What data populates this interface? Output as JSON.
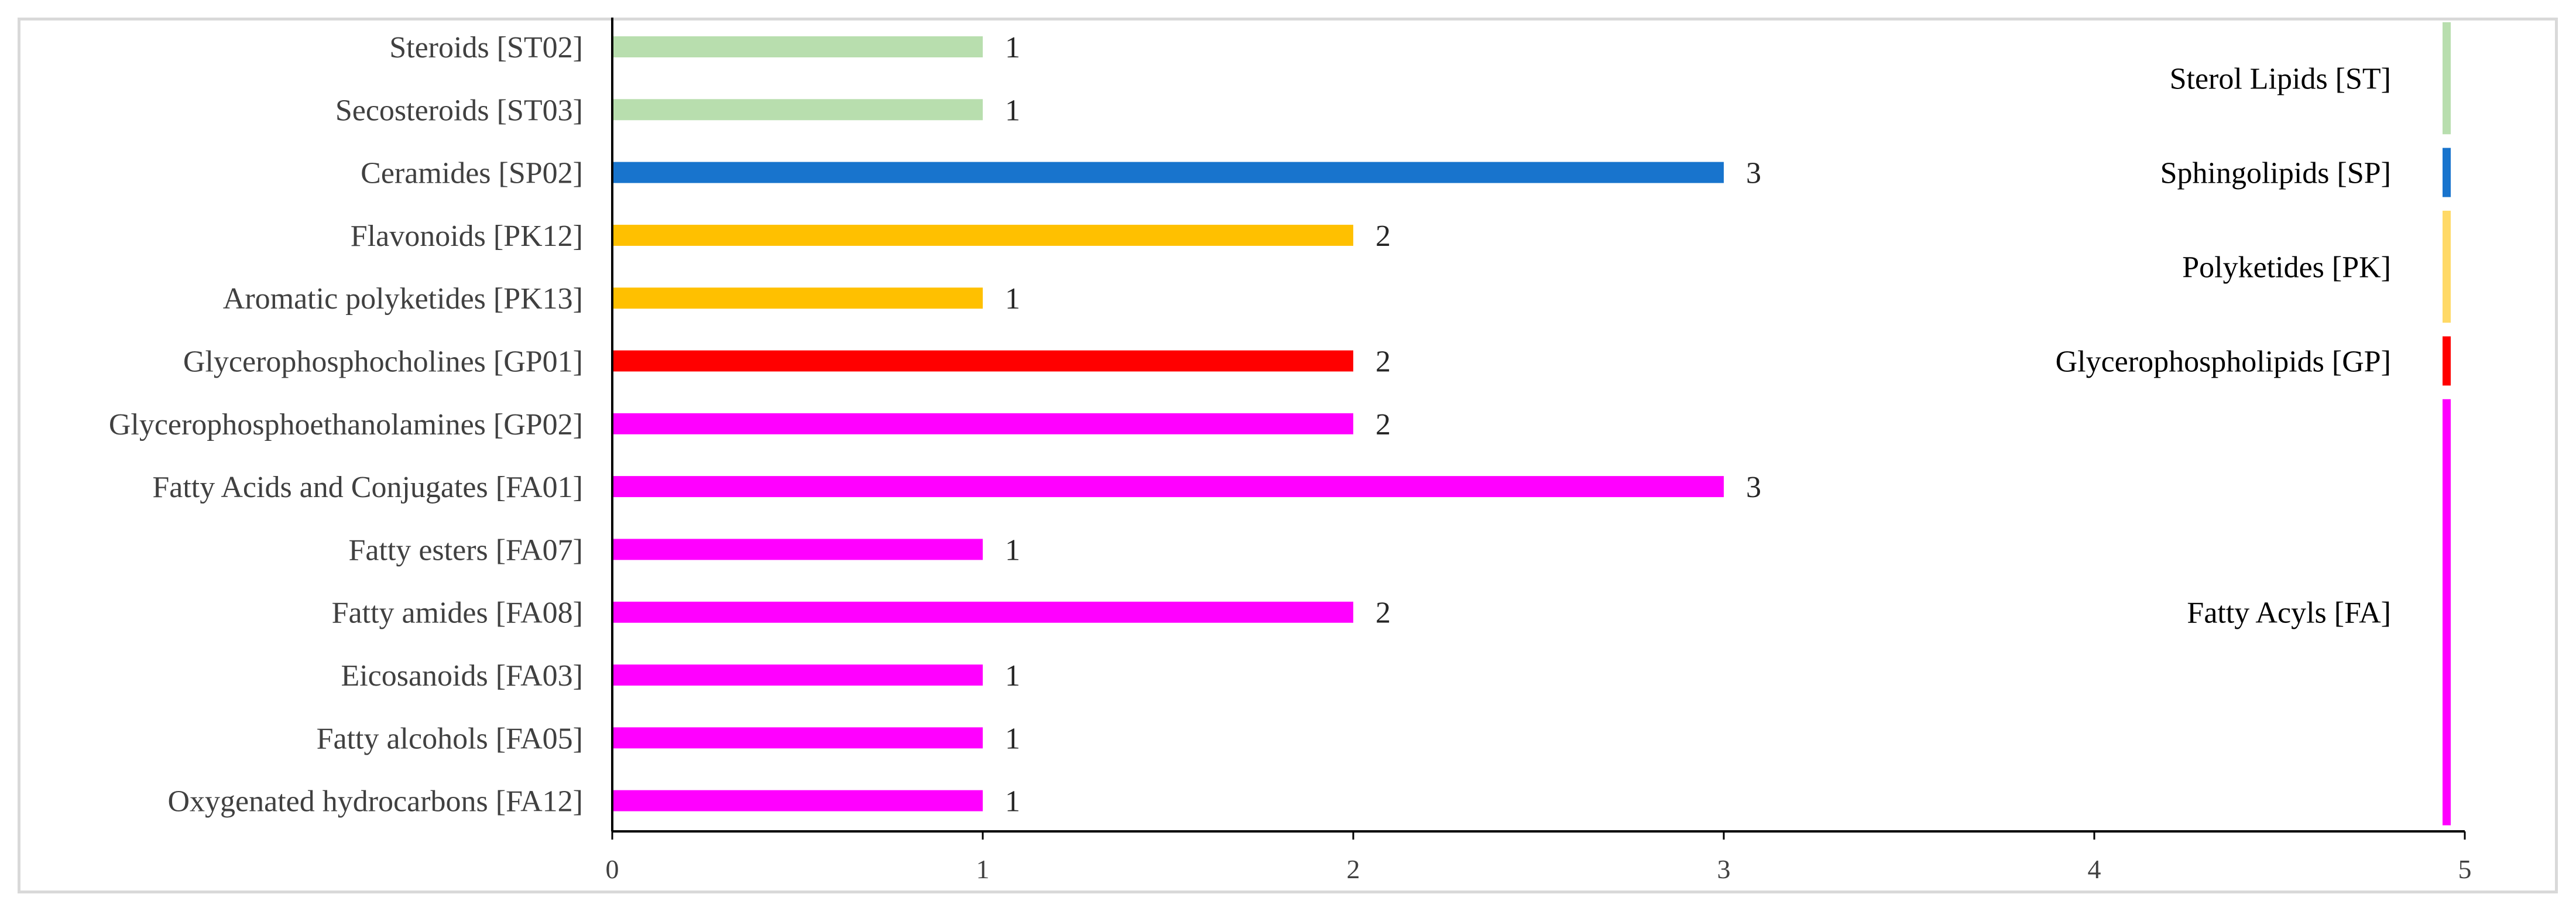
{
  "chart_data": {
    "type": "bar",
    "orientation": "horizontal",
    "title": "",
    "xlabel": "",
    "ylabel": "",
    "xlim": [
      0,
      5
    ],
    "xticks": [
      0,
      1,
      2,
      3,
      4,
      5
    ],
    "grid": false,
    "categories": [
      "Steroids [ST02]",
      "Secosteroids [ST03]",
      "Ceramides [SP02]",
      "Flavonoids [PK12]",
      "Aromatic polyketides [PK13]",
      "Glycerophosphocholines [GP01]",
      "Glycerophosphoethanolamines [GP02]",
      "Fatty Acids and Conjugates [FA01]",
      "Fatty esters [FA07]",
      "Fatty amides [FA08]",
      "Eicosanoids [FA03]",
      "Fatty alcohols [FA05]",
      "Oxygenated hydrocarbons [FA12]"
    ],
    "values": [
      1,
      1,
      3,
      2,
      1,
      2,
      2,
      3,
      1,
      2,
      1,
      1,
      1
    ],
    "bar_colors": [
      "#b8deae",
      "#b8deae",
      "#1874cd",
      "#ffc000",
      "#ffc000",
      "#ff0000",
      "#ff00ff",
      "#ff00ff",
      "#ff00ff",
      "#ff00ff",
      "#ff00ff",
      "#ff00ff",
      "#ff00ff"
    ],
    "data_labels": [
      "1",
      "1",
      "3",
      "2",
      "1",
      "2",
      "2",
      "3",
      "1",
      "2",
      "1",
      "1",
      "1"
    ],
    "groups": [
      {
        "name": "Sterol Lipids [ST]",
        "color": "#b8deae",
        "first": 0,
        "last": 1
      },
      {
        "name": "Sphingolipids [SP]",
        "color": "#1874cd",
        "first": 2,
        "last": 2
      },
      {
        "name": "Polyketides [PK]",
        "color": "#ffd966",
        "first": 3,
        "last": 4
      },
      {
        "name": "Glycerophospholipids [GP]",
        "color": "#ff0000",
        "first": 5,
        "last": 5
      },
      {
        "name": "Fatty Acyls [FA]",
        "color": "#ff00ff",
        "first": 6,
        "last": 12
      }
    ]
  }
}
